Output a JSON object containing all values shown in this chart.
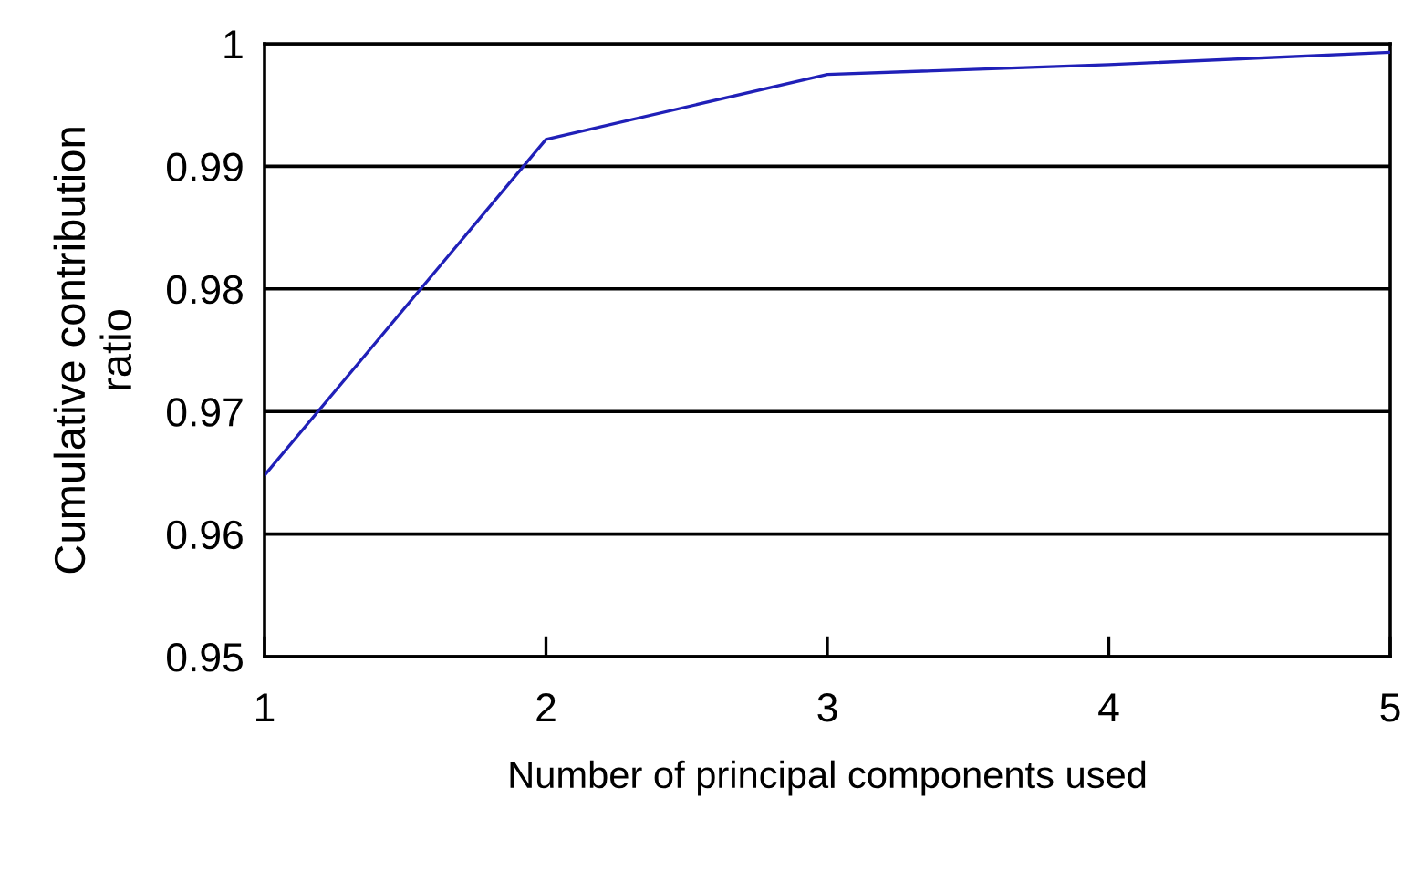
{
  "chart_data": {
    "type": "line",
    "xlabel": "Number of principal components used",
    "ylabel": "Cumulative contribution\nratio",
    "x": [
      1,
      2,
      3,
      4,
      5
    ],
    "series": [
      {
        "color": "#2020b8",
        "values": [
          0.9648,
          0.9922,
          0.9975,
          0.9983,
          0.9993
        ]
      }
    ],
    "xlim": [
      1,
      5
    ],
    "xticks": [
      1,
      2,
      3,
      4,
      5
    ],
    "ylim": [
      0.95,
      1
    ],
    "yticks": [
      0.95,
      0.96,
      0.97,
      0.98,
      0.99,
      {
        "value": 1,
        "label": "1"
      }
    ],
    "grid": "y",
    "marker": "none",
    "line_style": "solid"
  }
}
